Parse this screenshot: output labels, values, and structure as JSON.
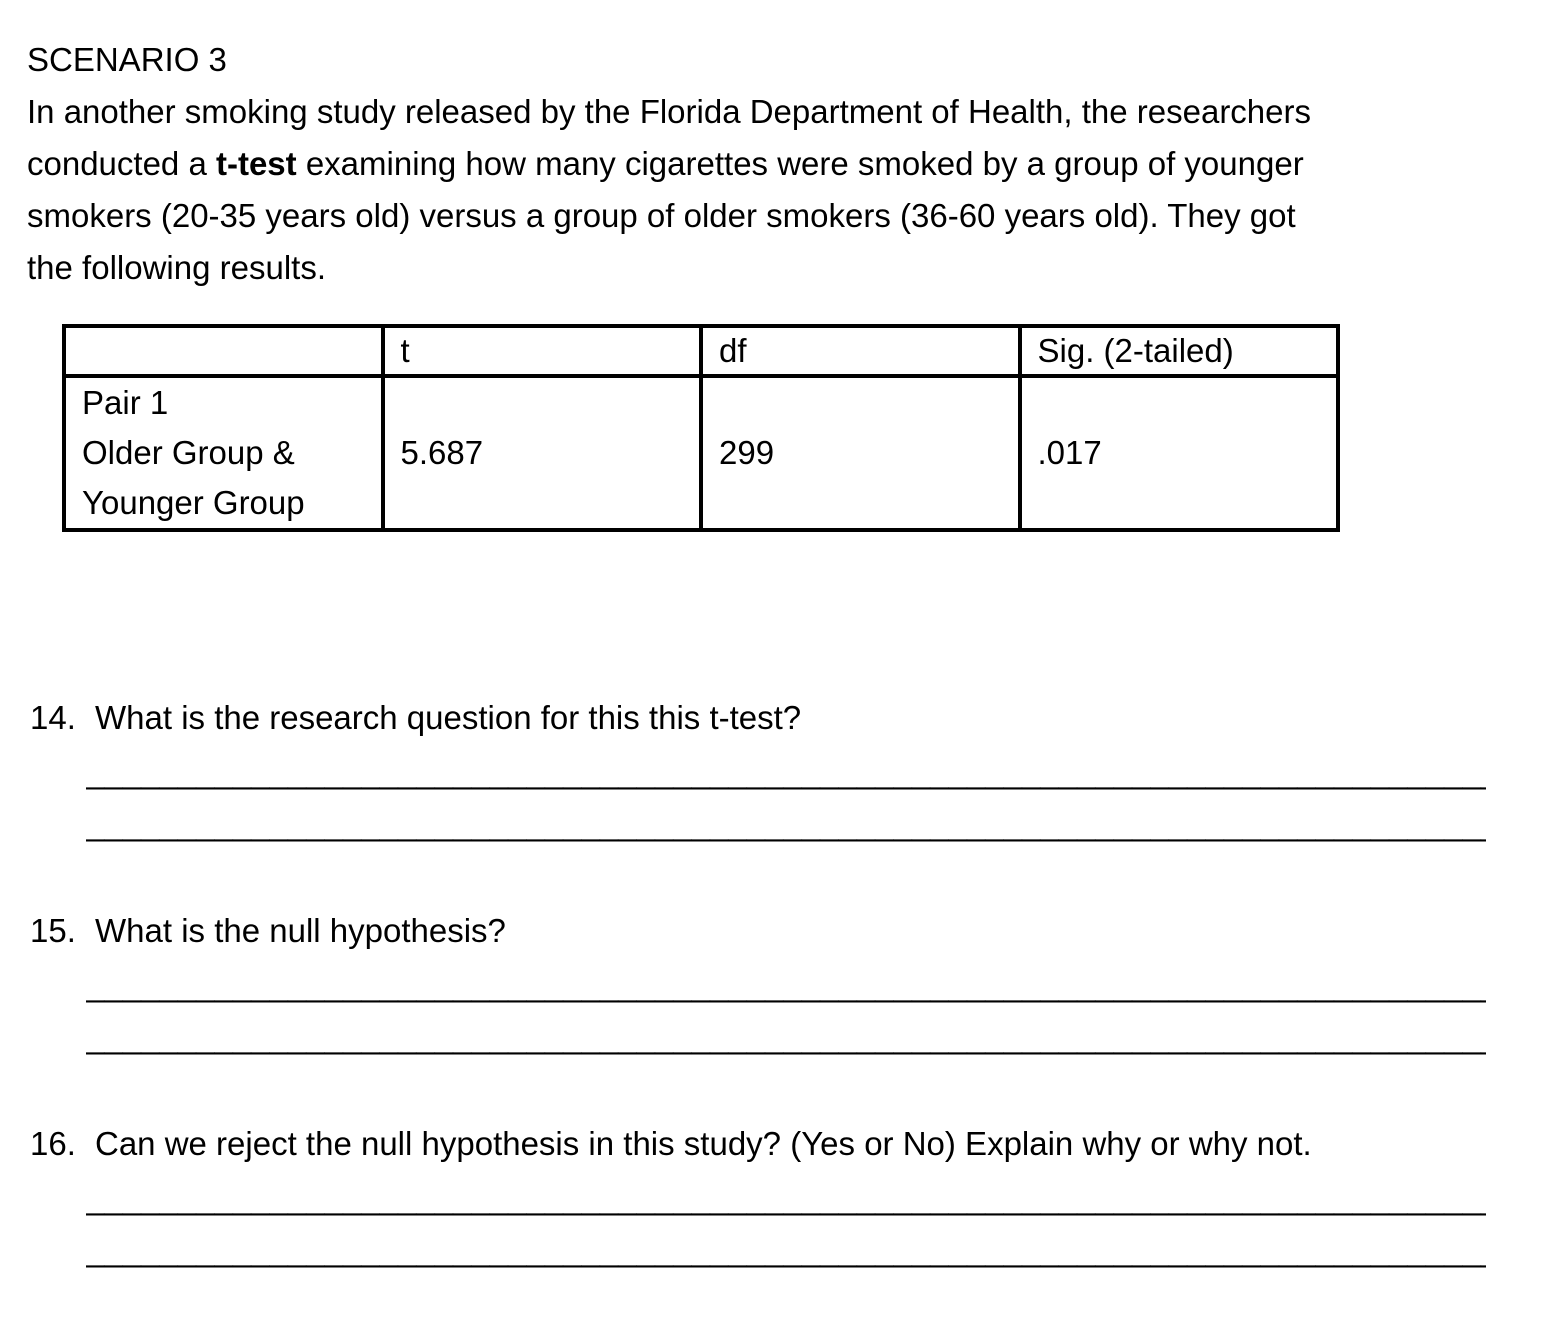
{
  "scenario": {
    "title": "SCENARIO 3",
    "intro": {
      "line1": "In another smoking study released by the Florida Department of Health, the researchers",
      "line2_before": "conducted a ",
      "line2_bold": "t-test",
      "line2_after": " examining how many cigarettes were smoked by a group of younger",
      "line3": "smokers (20-35 years old) versus a group of older smokers (36-60 years old). They got",
      "line4": "the following results."
    }
  },
  "results_table": {
    "headers": {
      "col1": "",
      "col2": "t",
      "col3": "df",
      "col4": "Sig. (2-tailed)"
    },
    "row": {
      "label_line1": "Pair 1",
      "label_line2": "Older Group &",
      "label_line3": "Younger Group",
      "t_value": "5.687",
      "df_value": "299",
      "sig_value": ".017"
    }
  },
  "questions": [
    {
      "number": "14.",
      "text": "What is the research question for this this t-test?"
    },
    {
      "number": "15.",
      "text": "What is the null hypothesis?"
    },
    {
      "number": "16.",
      "text": "Can we reject the null hypothesis in this study? (Yes or No) Explain why or why not."
    }
  ],
  "answer_line": "________________________________________________________________________________________"
}
